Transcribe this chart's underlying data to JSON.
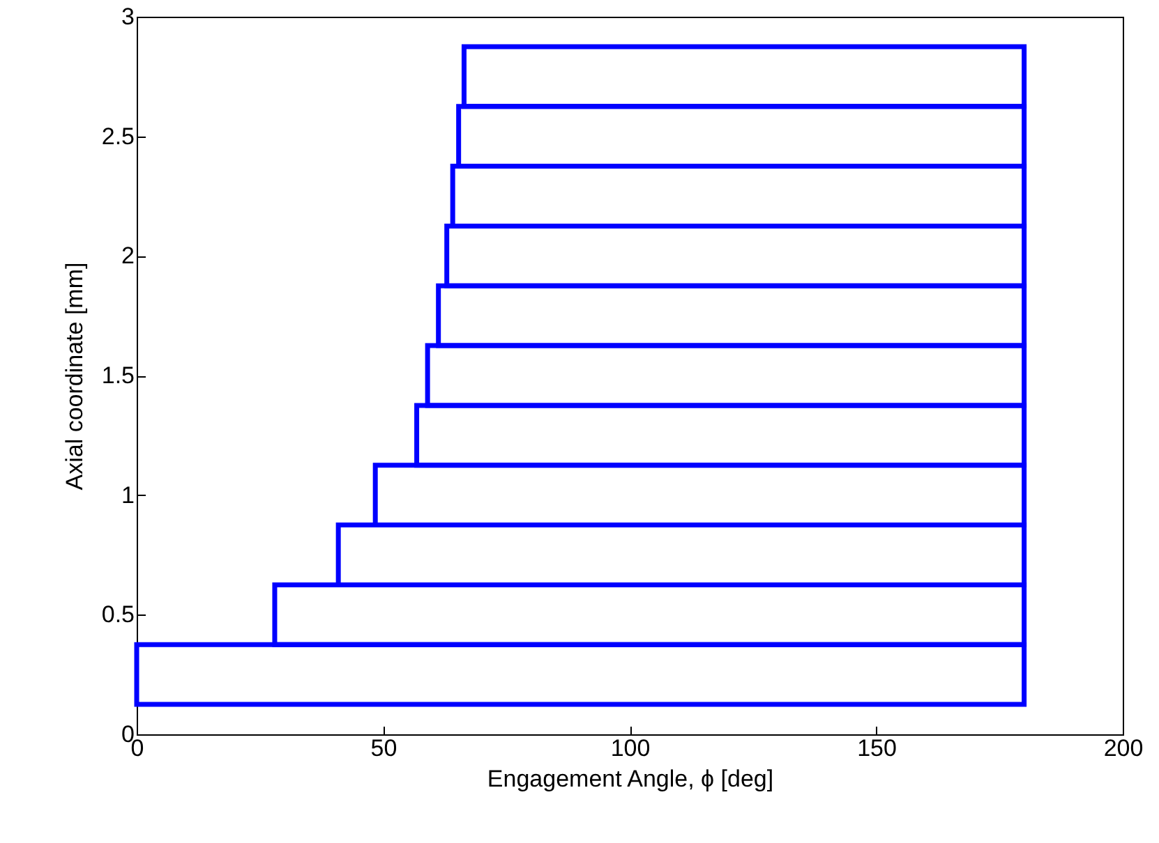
{
  "chart_data": {
    "type": "bar",
    "orientation": "horizontal",
    "xlabel": "Engagement Angle, ϕ [deg]",
    "ylabel": "Axial coordinate [mm]",
    "x": [
      0.25,
      0.5,
      0.75,
      1.0,
      1.25,
      1.5,
      1.75,
      2.0,
      2.25,
      2.5,
      2.75
    ],
    "base": [
      0,
      28,
      40.9,
      48.4,
      56.8,
      59,
      61.2,
      62.9,
      64.1,
      65.3,
      66.4
    ],
    "values": [
      180,
      152,
      139.1,
      131.6,
      123.2,
      121,
      118.8,
      117.1,
      115.9,
      114.7,
      113.6
    ],
    "color": "#0000ff",
    "xlim": [
      0,
      200
    ],
    "xticks": [
      0,
      50,
      100,
      150,
      200
    ],
    "ylim": [
      0,
      3
    ],
    "yticks": [
      0,
      0.5,
      1,
      1.5,
      2,
      2.5,
      3
    ],
    "grid": false
  }
}
